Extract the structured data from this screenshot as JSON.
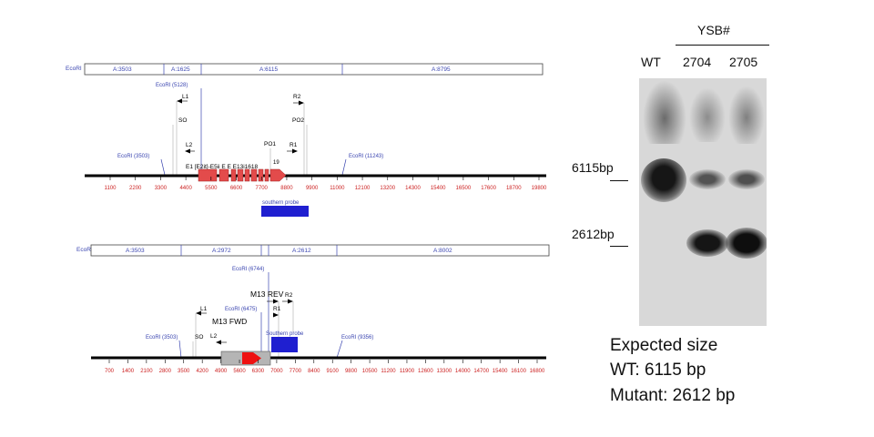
{
  "map1": {
    "ecori_label": "EcoRI",
    "fragments": [
      "A:3503",
      "A:1625",
      "A:6115",
      "A:8795"
    ],
    "sites": [
      "EcoRI (5128)",
      "EcoRI (3503)",
      "EcoRI (11243)"
    ],
    "primers": [
      "L1",
      "SO",
      "L2",
      "PO1",
      "R1",
      "R2",
      "PO2"
    ],
    "exons": "E1  [E2it]-E5ii  E E  E13i1618",
    "exon_extra": "19",
    "probe": "southern probe",
    "ticks": [
      "1100",
      "2200",
      "3300",
      "4400",
      "5500",
      "6600",
      "7700",
      "8800",
      "9900",
      "11000",
      "12100",
      "13200",
      "14300",
      "15400",
      "16500",
      "17600",
      "18700",
      "19800"
    ]
  },
  "map2": {
    "ecori_label": "EcoRI",
    "fragments": [
      "A:3503",
      "A:2972",
      "A:2612",
      "A:8002"
    ],
    "sites": [
      "EcoRI (6744)",
      "EcoRI (6475)",
      "EcoRI (3503)",
      "EcoRI (9356)"
    ],
    "primers": [
      "L1",
      "SO",
      "L2",
      "M13 FWD",
      "M13 REV",
      "R1",
      "R2"
    ],
    "probe": "Southern probe",
    "ticks": [
      "700",
      "1400",
      "2100",
      "2800",
      "3500",
      "4200",
      "4900",
      "5600",
      "6300",
      "7000",
      "7700",
      "8400",
      "9100",
      "9800",
      "10500",
      "11200",
      "11900",
      "12600",
      "13300",
      "14000",
      "14700",
      "15400",
      "16100",
      "16800"
    ]
  },
  "gel": {
    "group_label": "YSB#",
    "lanes": [
      "WT",
      "2704",
      "2705"
    ],
    "markers": [
      "6115bp",
      "2612bp"
    ]
  },
  "expected": {
    "title": "Expected size",
    "wt": "WT: 6115 bp",
    "mutant": "Mutant: 2612 bp"
  },
  "colors": {
    "map_blue": "#3a45b0",
    "tick_red": "#cc2222",
    "exon_red": "#e34b4b",
    "probe_blue": "#1f1fd0",
    "arrow_red": "#ee1111",
    "cassette_gray": "#b5b5b5"
  }
}
